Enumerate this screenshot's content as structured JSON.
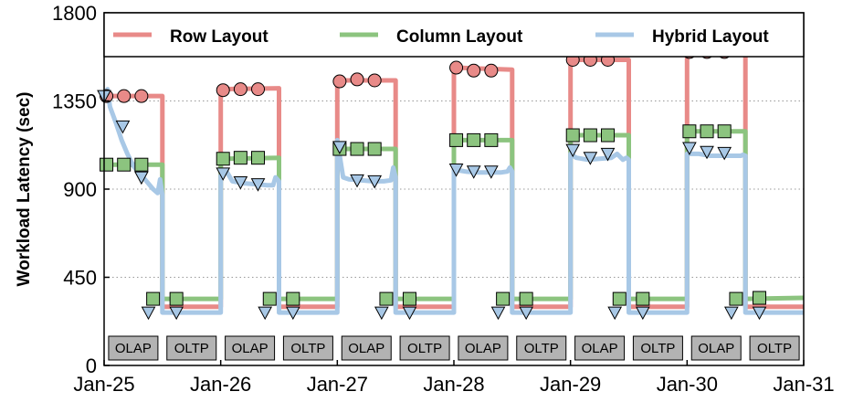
{
  "chart_data": {
    "type": "line",
    "title": "",
    "xlabel": "",
    "ylabel": "Workload Latency (sec)",
    "ylim": [
      0,
      1800
    ],
    "xlim": [
      0,
      6
    ],
    "x_ticks": [
      {
        "x": 0,
        "label": "Jan-25"
      },
      {
        "x": 1,
        "label": "Jan-26"
      },
      {
        "x": 2,
        "label": "Jan-27"
      },
      {
        "x": 3,
        "label": "Jan-28"
      },
      {
        "x": 4,
        "label": "Jan-29"
      },
      {
        "x": 5,
        "label": "Jan-30"
      },
      {
        "x": 6,
        "label": "Jan-31"
      }
    ],
    "y_ticks": [
      {
        "y": 0,
        "label": "0"
      },
      {
        "y": 450,
        "label": "450"
      },
      {
        "y": 900,
        "label": "900"
      },
      {
        "y": 1350,
        "label": "1350"
      },
      {
        "y": 1800,
        "label": "1800"
      }
    ],
    "grid": "horizontal-dotted",
    "legend_position": "top",
    "phases": [
      {
        "label": "OLAP",
        "start": 0.0,
        "end": 0.5
      },
      {
        "label": "OLTP",
        "start": 0.5,
        "end": 1.0
      },
      {
        "label": "OLAP",
        "start": 1.0,
        "end": 1.5
      },
      {
        "label": "OLTP",
        "start": 1.5,
        "end": 2.0
      },
      {
        "label": "OLAP",
        "start": 2.0,
        "end": 2.5
      },
      {
        "label": "OLTP",
        "start": 2.5,
        "end": 3.0
      },
      {
        "label": "OLAP",
        "start": 3.0,
        "end": 3.5
      },
      {
        "label": "OLTP",
        "start": 3.5,
        "end": 4.0
      },
      {
        "label": "OLAP",
        "start": 4.0,
        "end": 4.5
      },
      {
        "label": "OLTP",
        "start": 4.5,
        "end": 5.0
      },
      {
        "label": "OLAP",
        "start": 5.0,
        "end": 5.5
      },
      {
        "label": "OLTP",
        "start": 5.5,
        "end": 6.0
      }
    ],
    "series": [
      {
        "name": "Row Layout",
        "color": "#e88a88",
        "marker": "circle",
        "points": [
          [
            0.0,
            1375
          ],
          [
            0.5,
            1375
          ],
          [
            0.5,
            300
          ],
          [
            1.0,
            300
          ],
          [
            1.0,
            1410
          ],
          [
            1.5,
            1415
          ],
          [
            1.5,
            300
          ],
          [
            2.0,
            300
          ],
          [
            2.0,
            1455
          ],
          [
            2.5,
            1455
          ],
          [
            2.5,
            300
          ],
          [
            3.0,
            300
          ],
          [
            3.0,
            1520
          ],
          [
            3.5,
            1510
          ],
          [
            3.5,
            300
          ],
          [
            4.0,
            300
          ],
          [
            4.0,
            1560
          ],
          [
            4.5,
            1560
          ],
          [
            4.5,
            300
          ],
          [
            5.0,
            300
          ],
          [
            5.0,
            1595
          ],
          [
            5.5,
            1595
          ],
          [
            5.5,
            300
          ],
          [
            6.0,
            300
          ]
        ],
        "markers": [
          [
            0.02,
            1375
          ],
          [
            0.17,
            1375
          ],
          [
            0.32,
            1375
          ],
          [
            1.02,
            1405
          ],
          [
            1.17,
            1410
          ],
          [
            1.32,
            1410
          ],
          [
            2.02,
            1450
          ],
          [
            2.17,
            1460
          ],
          [
            2.32,
            1455
          ],
          [
            3.02,
            1520
          ],
          [
            3.17,
            1505
          ],
          [
            3.32,
            1505
          ],
          [
            4.02,
            1560
          ],
          [
            4.17,
            1560
          ],
          [
            4.32,
            1560
          ],
          [
            5.02,
            1600
          ],
          [
            5.17,
            1600
          ],
          [
            5.32,
            1600
          ]
        ]
      },
      {
        "name": "Column Layout",
        "color": "#8cc47f",
        "marker": "square",
        "points": [
          [
            0.0,
            1025
          ],
          [
            0.5,
            1025
          ],
          [
            0.5,
            340
          ],
          [
            1.0,
            340
          ],
          [
            1.0,
            1055
          ],
          [
            1.5,
            1060
          ],
          [
            1.5,
            340
          ],
          [
            2.0,
            340
          ],
          [
            2.0,
            1105
          ],
          [
            2.5,
            1105
          ],
          [
            2.5,
            340
          ],
          [
            3.0,
            340
          ],
          [
            3.0,
            1150
          ],
          [
            3.5,
            1150
          ],
          [
            3.5,
            340
          ],
          [
            4.0,
            340
          ],
          [
            4.0,
            1175
          ],
          [
            4.5,
            1175
          ],
          [
            4.5,
            340
          ],
          [
            5.0,
            340
          ],
          [
            5.0,
            1195
          ],
          [
            5.5,
            1195
          ],
          [
            5.5,
            340
          ],
          [
            6.0,
            345
          ]
        ],
        "markers": [
          [
            0.02,
            1025
          ],
          [
            0.17,
            1025
          ],
          [
            0.32,
            1025
          ],
          [
            1.02,
            1055
          ],
          [
            1.17,
            1060
          ],
          [
            1.32,
            1060
          ],
          [
            2.02,
            1105
          ],
          [
            2.17,
            1105
          ],
          [
            2.32,
            1105
          ],
          [
            3.02,
            1150
          ],
          [
            3.17,
            1150
          ],
          [
            3.32,
            1150
          ],
          [
            4.02,
            1175
          ],
          [
            4.17,
            1175
          ],
          [
            4.32,
            1175
          ],
          [
            5.02,
            1195
          ],
          [
            5.17,
            1195
          ],
          [
            5.32,
            1195
          ],
          [
            0.42,
            340
          ],
          [
            0.62,
            340
          ],
          [
            1.42,
            340
          ],
          [
            1.62,
            340
          ],
          [
            2.42,
            340
          ],
          [
            2.62,
            340
          ],
          [
            3.42,
            340
          ],
          [
            3.62,
            340
          ],
          [
            4.42,
            340
          ],
          [
            4.62,
            340
          ],
          [
            5.42,
            340
          ],
          [
            5.62,
            345
          ]
        ]
      },
      {
        "name": "Hybrid Layout",
        "color": "#a8c8e6",
        "marker": "triangle-down",
        "points": [
          [
            0.0,
            1375
          ],
          [
            0.03,
            1410
          ],
          [
            0.05,
            1320
          ],
          [
            0.1,
            1240
          ],
          [
            0.15,
            1150
          ],
          [
            0.2,
            1080
          ],
          [
            0.25,
            1020
          ],
          [
            0.3,
            980
          ],
          [
            0.35,
            950
          ],
          [
            0.42,
            900
          ],
          [
            0.46,
            880
          ],
          [
            0.48,
            950
          ],
          [
            0.5,
            870
          ],
          [
            0.5,
            270
          ],
          [
            1.0,
            270
          ],
          [
            1.0,
            970
          ],
          [
            1.05,
            990
          ],
          [
            1.1,
            940
          ],
          [
            1.2,
            930
          ],
          [
            1.3,
            925
          ],
          [
            1.4,
            920
          ],
          [
            1.45,
            920
          ],
          [
            1.47,
            960
          ],
          [
            1.5,
            940
          ],
          [
            1.5,
            270
          ],
          [
            2.0,
            270
          ],
          [
            2.0,
            1150
          ],
          [
            2.05,
            960
          ],
          [
            2.1,
            950
          ],
          [
            2.2,
            945
          ],
          [
            2.3,
            940
          ],
          [
            2.4,
            940
          ],
          [
            2.46,
            945
          ],
          [
            2.48,
            1010
          ],
          [
            2.5,
            960
          ],
          [
            2.5,
            270
          ],
          [
            3.0,
            270
          ],
          [
            3.0,
            1000
          ],
          [
            3.1,
            990
          ],
          [
            3.2,
            985
          ],
          [
            3.3,
            985
          ],
          [
            3.4,
            985
          ],
          [
            3.46,
            990
          ],
          [
            3.48,
            1010
          ],
          [
            3.5,
            990
          ],
          [
            3.5,
            270
          ],
          [
            4.0,
            270
          ],
          [
            4.0,
            1080
          ],
          [
            4.05,
            1060
          ],
          [
            4.15,
            1050
          ],
          [
            4.25,
            1055
          ],
          [
            4.35,
            1060
          ],
          [
            4.4,
            1080
          ],
          [
            4.45,
            1050
          ],
          [
            4.48,
            1060
          ],
          [
            4.5,
            1050
          ],
          [
            4.5,
            270
          ],
          [
            5.0,
            270
          ],
          [
            5.0,
            1080
          ],
          [
            5.1,
            1080
          ],
          [
            5.2,
            1070
          ],
          [
            5.3,
            1070
          ],
          [
            5.4,
            1070
          ],
          [
            5.46,
            1070
          ],
          [
            5.48,
            1075
          ],
          [
            5.5,
            1070
          ],
          [
            5.5,
            270
          ],
          [
            6.0,
            270
          ]
        ],
        "markers": [
          [
            0.0,
            1375
          ],
          [
            0.16,
            1220
          ],
          [
            0.32,
            960
          ],
          [
            1.02,
            980
          ],
          [
            1.17,
            935
          ],
          [
            1.32,
            925
          ],
          [
            2.02,
            1115
          ],
          [
            2.17,
            945
          ],
          [
            2.32,
            940
          ],
          [
            3.02,
            1000
          ],
          [
            3.17,
            990
          ],
          [
            3.32,
            990
          ],
          [
            4.02,
            1100
          ],
          [
            4.17,
            1060
          ],
          [
            4.32,
            1080
          ],
          [
            5.02,
            1110
          ],
          [
            5.17,
            1090
          ],
          [
            5.32,
            1085
          ],
          [
            0.38,
            270
          ],
          [
            0.62,
            270
          ],
          [
            1.38,
            270
          ],
          [
            1.62,
            270
          ],
          [
            2.38,
            270
          ],
          [
            2.62,
            270
          ],
          [
            3.38,
            270
          ],
          [
            3.62,
            270
          ],
          [
            4.38,
            270
          ],
          [
            4.62,
            270
          ],
          [
            5.38,
            270
          ],
          [
            5.62,
            270
          ]
        ]
      }
    ]
  }
}
